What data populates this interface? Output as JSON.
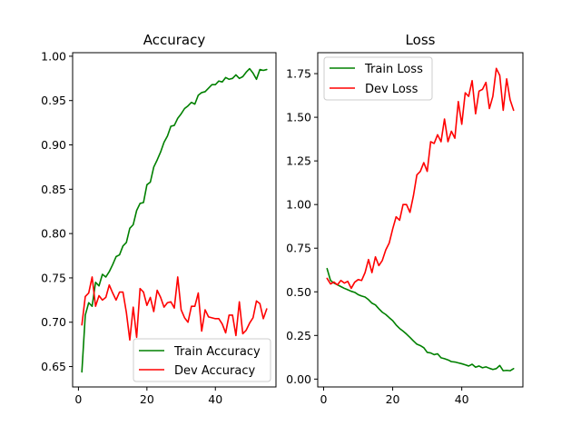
{
  "chart_data": [
    {
      "type": "line",
      "title": "Accuracy",
      "xlabel": "",
      "ylabel": "",
      "xlim": [
        -1.7,
        57.7
      ],
      "ylim": [
        0.627,
        1.004
      ],
      "xticks": [
        0,
        20,
        40
      ],
      "yticks": [
        0.65,
        0.7,
        0.75,
        0.8,
        0.85,
        0.9,
        0.95,
        1.0
      ],
      "ytick_labels": [
        "0.65",
        "0.70",
        "0.75",
        "0.80",
        "0.85",
        "0.90",
        "0.95",
        "1.00"
      ],
      "legend": "lower-right",
      "grid": false,
      "series": [
        {
          "name": "Train Accuracy",
          "color": "#008000",
          "x": [
            1,
            2,
            3,
            4,
            5,
            6,
            7,
            8,
            9,
            10,
            11,
            12,
            13,
            14,
            15,
            16,
            17,
            18,
            19,
            20,
            21,
            22,
            23,
            24,
            25,
            26,
            27,
            28,
            29,
            30,
            31,
            32,
            33,
            34,
            35,
            36,
            37,
            38,
            39,
            40,
            41,
            42,
            43,
            44,
            45,
            46,
            47,
            48,
            49,
            50,
            51,
            52,
            53,
            54,
            55
          ],
          "values": [
            0.644,
            0.708,
            0.722,
            0.718,
            0.745,
            0.741,
            0.754,
            0.751,
            0.757,
            0.765,
            0.774,
            0.776,
            0.786,
            0.79,
            0.806,
            0.81,
            0.826,
            0.834,
            0.835,
            0.855,
            0.858,
            0.875,
            0.883,
            0.892,
            0.903,
            0.91,
            0.921,
            0.922,
            0.93,
            0.935,
            0.941,
            0.944,
            0.948,
            0.946,
            0.956,
            0.959,
            0.96,
            0.964,
            0.968,
            0.968,
            0.972,
            0.971,
            0.976,
            0.974,
            0.975,
            0.979,
            0.975,
            0.977,
            0.982,
            0.986,
            0.981,
            0.974,
            0.985,
            0.984,
            0.985
          ]
        },
        {
          "name": "Dev Accuracy",
          "color": "#ff0000",
          "x": [
            1,
            2,
            3,
            4,
            5,
            6,
            7,
            8,
            9,
            10,
            11,
            12,
            13,
            14,
            15,
            16,
            17,
            18,
            19,
            20,
            21,
            22,
            23,
            24,
            25,
            26,
            27,
            28,
            29,
            30,
            31,
            32,
            33,
            34,
            35,
            36,
            37,
            38,
            39,
            40,
            41,
            42,
            43,
            44,
            45,
            46,
            47,
            48,
            49,
            50,
            51,
            52,
            53,
            54,
            55
          ],
          "values": [
            0.697,
            0.729,
            0.733,
            0.751,
            0.718,
            0.73,
            0.725,
            0.728,
            0.742,
            0.733,
            0.725,
            0.734,
            0.734,
            0.711,
            0.68,
            0.717,
            0.683,
            0.738,
            0.734,
            0.719,
            0.728,
            0.712,
            0.736,
            0.728,
            0.717,
            0.722,
            0.723,
            0.716,
            0.751,
            0.714,
            0.705,
            0.7,
            0.718,
            0.718,
            0.733,
            0.69,
            0.714,
            0.706,
            0.705,
            0.704,
            0.704,
            0.698,
            0.688,
            0.708,
            0.708,
            0.685,
            0.723,
            0.687,
            0.691,
            0.699,
            0.705,
            0.724,
            0.721,
            0.704,
            0.715
          ]
        }
      ]
    },
    {
      "type": "line",
      "title": "Loss",
      "xlabel": "",
      "ylabel": "",
      "xlim": [
        -1.7,
        57.7
      ],
      "ylim": [
        -0.045,
        1.87
      ],
      "xticks": [
        0,
        20,
        40
      ],
      "yticks": [
        0.0,
        0.25,
        0.5,
        0.75,
        1.0,
        1.25,
        1.5,
        1.75
      ],
      "ytick_labels": [
        "0.00",
        "0.25",
        "0.50",
        "0.75",
        "1.00",
        "1.25",
        "1.50",
        "1.75"
      ],
      "legend": "upper-left",
      "grid": false,
      "series": [
        {
          "name": "Train Loss",
          "color": "#008000",
          "x": [
            1,
            2,
            3,
            4,
            5,
            6,
            7,
            8,
            9,
            10,
            11,
            12,
            13,
            14,
            15,
            16,
            17,
            18,
            19,
            20,
            21,
            22,
            23,
            24,
            25,
            26,
            27,
            28,
            29,
            30,
            31,
            32,
            33,
            34,
            35,
            36,
            37,
            38,
            39,
            40,
            41,
            42,
            43,
            44,
            45,
            46,
            47,
            48,
            49,
            50,
            51,
            52,
            53,
            54,
            55
          ],
          "values": [
            0.633,
            0.565,
            0.55,
            0.54,
            0.53,
            0.52,
            0.512,
            0.503,
            0.497,
            0.484,
            0.476,
            0.47,
            0.455,
            0.435,
            0.425,
            0.403,
            0.383,
            0.37,
            0.352,
            0.335,
            0.31,
            0.29,
            0.275,
            0.258,
            0.239,
            0.219,
            0.2,
            0.192,
            0.18,
            0.153,
            0.15,
            0.14,
            0.145,
            0.122,
            0.117,
            0.11,
            0.1,
            0.098,
            0.093,
            0.088,
            0.082,
            0.075,
            0.085,
            0.068,
            0.075,
            0.065,
            0.07,
            0.062,
            0.055,
            0.06,
            0.078,
            0.048,
            0.05,
            0.048,
            0.06
          ]
        },
        {
          "name": "Dev Loss",
          "color": "#ff0000",
          "x": [
            1,
            2,
            3,
            4,
            5,
            6,
            7,
            8,
            9,
            10,
            11,
            12,
            13,
            14,
            15,
            16,
            17,
            18,
            19,
            20,
            21,
            22,
            23,
            24,
            25,
            26,
            27,
            28,
            29,
            30,
            31,
            32,
            33,
            34,
            35,
            36,
            37,
            38,
            39,
            40,
            41,
            42,
            43,
            44,
            45,
            46,
            47,
            48,
            49,
            50,
            51,
            52,
            53,
            54,
            55
          ],
          "values": [
            0.577,
            0.545,
            0.556,
            0.54,
            0.565,
            0.55,
            0.56,
            0.52,
            0.555,
            0.57,
            0.565,
            0.61,
            0.685,
            0.61,
            0.7,
            0.65,
            0.68,
            0.74,
            0.78,
            0.86,
            0.93,
            0.91,
            1.0,
            1.0,
            0.955,
            1.05,
            1.17,
            1.19,
            1.24,
            1.19,
            1.36,
            1.35,
            1.4,
            1.36,
            1.49,
            1.36,
            1.42,
            1.38,
            1.59,
            1.46,
            1.64,
            1.62,
            1.71,
            1.52,
            1.65,
            1.66,
            1.7,
            1.55,
            1.62,
            1.78,
            1.74,
            1.54,
            1.72,
            1.6,
            1.54
          ]
        }
      ]
    }
  ]
}
